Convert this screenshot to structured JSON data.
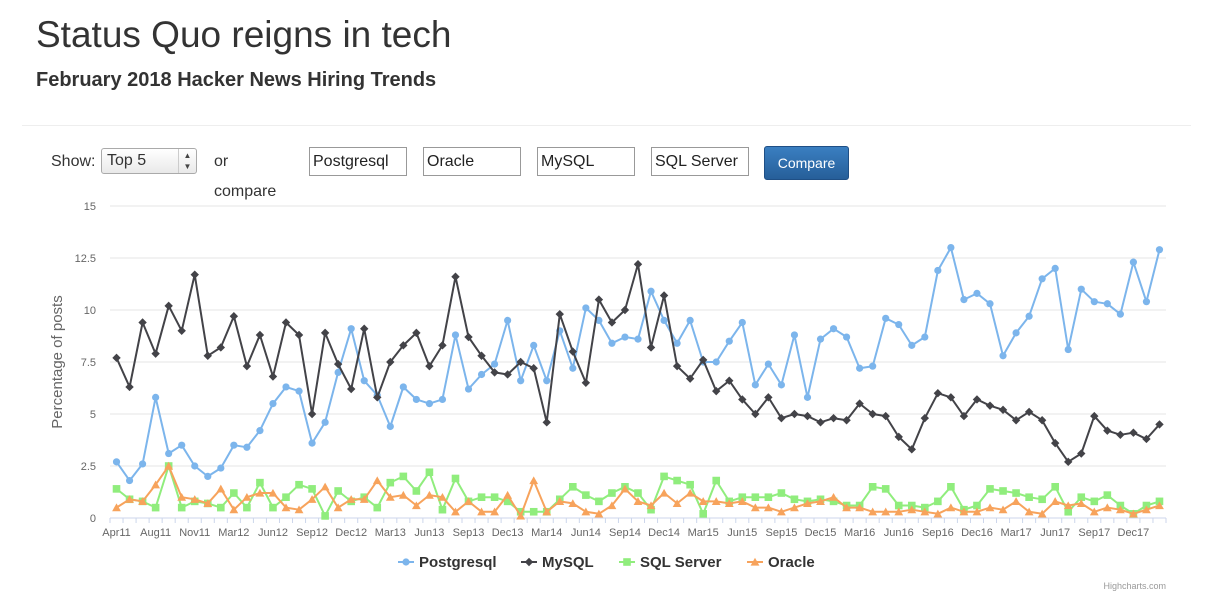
{
  "header": {
    "title": "Status Quo reigns in tech",
    "subtitle": "February 2018 Hacker News Hiring Trends"
  },
  "controls": {
    "show_label": "Show:",
    "show_value": "Top 5",
    "compare_label": "or compare",
    "inputs": [
      "Postgresql",
      "Oracle",
      "MySQL",
      "SQL Server"
    ],
    "compare_button": "Compare"
  },
  "credit": "Highcharts.com",
  "chart_data": {
    "type": "line",
    "title": "",
    "ylabel": "Percentage of posts",
    "xlabel": "",
    "ylim": [
      0,
      15
    ],
    "yticks": [
      "0",
      "2.5",
      "5",
      "7.5",
      "10",
      "12.5",
      "15"
    ],
    "x_tick_labels": [
      "Apr11",
      "Aug11",
      "Nov11",
      "Mar12",
      "Jun12",
      "Sep12",
      "Dec12",
      "Mar13",
      "Jun13",
      "Sep13",
      "Dec13",
      "Mar14",
      "Jun14",
      "Sep14",
      "Dec14",
      "Mar15",
      "Jun15",
      "Sep15",
      "Dec15",
      "Mar16",
      "Jun16",
      "Sep16",
      "Dec16",
      "Mar17",
      "Jun17",
      "Sep17",
      "Dec17"
    ],
    "legend_position": "bottom-center",
    "grid": true,
    "series": [
      {
        "name": "Postgresql",
        "color": "#7cb5ec",
        "marker": "circle",
        "values": [
          2.7,
          1.8,
          2.6,
          5.8,
          3.1,
          3.5,
          2.5,
          2.0,
          2.4,
          3.5,
          3.4,
          4.2,
          5.5,
          6.3,
          6.1,
          3.6,
          4.6,
          7.0,
          9.1,
          6.6,
          5.9,
          4.4,
          6.3,
          5.7,
          5.5,
          5.7,
          8.8,
          6.2,
          6.9,
          7.4,
          9.5,
          6.6,
          8.3,
          6.6,
          9.0,
          7.2,
          10.1,
          9.5,
          8.4,
          8.7,
          8.6,
          10.9,
          9.5,
          8.4,
          9.5,
          7.5,
          7.5,
          8.5,
          9.4,
          6.4,
          7.4,
          6.4,
          8.8,
          5.8,
          8.6,
          9.1,
          8.7,
          7.2,
          7.3,
          9.6,
          9.3,
          8.3,
          8.7,
          11.9,
          13.0,
          10.5,
          10.8,
          10.3,
          7.8,
          8.9,
          9.7,
          11.5,
          12.0,
          8.1,
          11.0,
          10.4,
          10.3,
          9.8,
          12.3,
          10.4,
          12.9
        ]
      },
      {
        "name": "MySQL",
        "color": "#434348",
        "marker": "diamond",
        "values": [
          7.7,
          6.3,
          9.4,
          7.9,
          10.2,
          9.0,
          11.7,
          7.8,
          8.2,
          9.7,
          7.3,
          8.8,
          6.8,
          9.4,
          8.8,
          5.0,
          8.9,
          7.4,
          6.2,
          9.1,
          5.8,
          7.5,
          8.3,
          8.9,
          7.3,
          8.3,
          11.6,
          8.7,
          7.8,
          7.0,
          6.9,
          7.5,
          7.2,
          4.6,
          9.8,
          8.0,
          6.5,
          10.5,
          9.4,
          10.0,
          12.2,
          8.2,
          10.7,
          7.3,
          6.7,
          7.6,
          6.1,
          6.6,
          5.7,
          5.0,
          5.8,
          4.8,
          5.0,
          4.9,
          4.6,
          4.8,
          4.7,
          5.5,
          5.0,
          4.9,
          3.9,
          3.3,
          4.8,
          6.0,
          5.8,
          4.9,
          5.7,
          5.4,
          5.2,
          4.7,
          5.1,
          4.7,
          3.6,
          2.7,
          3.1,
          4.9,
          4.2,
          4.0,
          4.1,
          3.8,
          4.5
        ]
      },
      {
        "name": "SQL Server",
        "color": "#90ed7d",
        "marker": "square",
        "values": [
          1.4,
          0.9,
          0.8,
          0.5,
          2.5,
          0.5,
          0.8,
          0.7,
          0.5,
          1.2,
          0.5,
          1.7,
          0.5,
          1.0,
          1.6,
          1.4,
          0.1,
          1.3,
          0.8,
          1.0,
          0.5,
          1.7,
          2.0,
          1.3,
          2.2,
          0.4,
          1.9,
          0.8,
          1.0,
          1.0,
          0.8,
          0.3,
          0.3,
          0.3,
          0.9,
          1.5,
          1.1,
          0.8,
          1.2,
          1.5,
          1.2,
          0.4,
          2.0,
          1.8,
          1.6,
          0.2,
          1.8,
          0.8,
          1.0,
          1.0,
          1.0,
          1.2,
          0.9,
          0.8,
          0.9,
          0.8,
          0.6,
          0.6,
          1.5,
          1.4,
          0.6,
          0.6,
          0.5,
          0.8,
          1.5,
          0.4,
          0.6,
          1.4,
          1.3,
          1.2,
          1.0,
          0.9,
          1.5,
          0.3,
          1.0,
          0.8,
          1.1,
          0.6,
          0.2,
          0.6,
          0.8
        ]
      },
      {
        "name": "Oracle",
        "color": "#f7a35c",
        "marker": "triangle",
        "values": [
          0.5,
          0.9,
          0.8,
          1.6,
          2.5,
          1.0,
          0.9,
          0.7,
          1.4,
          0.4,
          1.0,
          1.2,
          1.2,
          0.5,
          0.4,
          0.9,
          1.5,
          0.5,
          0.9,
          0.9,
          1.8,
          1.0,
          1.1,
          0.6,
          1.1,
          1.0,
          0.3,
          0.8,
          0.3,
          0.3,
          1.1,
          0.1,
          1.8,
          0.3,
          0.8,
          0.7,
          0.3,
          0.2,
          0.6,
          1.4,
          0.8,
          0.6,
          1.2,
          0.7,
          1.2,
          0.8,
          0.8,
          0.7,
          0.8,
          0.5,
          0.5,
          0.3,
          0.5,
          0.7,
          0.8,
          1.0,
          0.5,
          0.5,
          0.3,
          0.3,
          0.3,
          0.4,
          0.3,
          0.2,
          0.5,
          0.3,
          0.3,
          0.5,
          0.4,
          0.8,
          0.3,
          0.2,
          0.8,
          0.6,
          0.7,
          0.3,
          0.5,
          0.4,
          0.2,
          0.4,
          0.6
        ]
      }
    ]
  }
}
